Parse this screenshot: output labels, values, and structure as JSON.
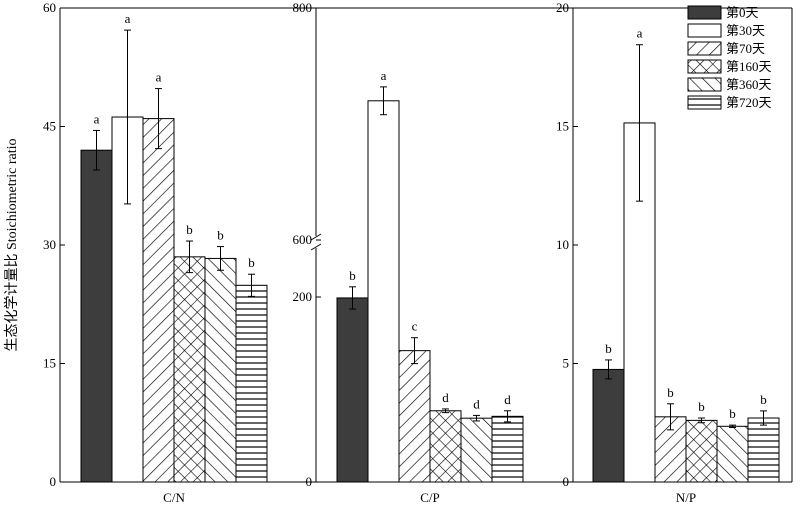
{
  "chart_data": {
    "type": "bar",
    "ylabel": "生态化学计量比 Stoichiometric ratio",
    "legend": {
      "placement": "top-right",
      "entries": [
        {
          "name": "第0天",
          "pattern": "solid-dark"
        },
        {
          "name": "第30天",
          "pattern": "white"
        },
        {
          "name": "第70天",
          "pattern": "diagonal-forward"
        },
        {
          "name": "第160天",
          "pattern": "crosshatch"
        },
        {
          "name": "第360天",
          "pattern": "diagonal-back"
        },
        {
          "name": "第720天",
          "pattern": "horizontal"
        }
      ]
    },
    "colors": {
      "dark_bar": "#3d3d3d",
      "line": "#000000"
    },
    "panels": [
      {
        "category": "C/N",
        "ylim": [
          0,
          60
        ],
        "ticks": [
          "0",
          "15",
          "30",
          "45",
          "60"
        ],
        "tick_values": [
          0,
          15,
          30,
          45,
          60
        ],
        "values": [
          42,
          46.2,
          46,
          28.5,
          28.3,
          24.9
        ],
        "errors": [
          2.5,
          11,
          3.8,
          2,
          1.5,
          1.4
        ],
        "letters": [
          "a",
          "a",
          "a",
          "b",
          "b",
          "b"
        ]
      },
      {
        "category": "C/P",
        "broken_axis": true,
        "ylim": [
          0,
          800
        ],
        "ticks": [
          "0",
          "200",
          "600",
          "800"
        ],
        "tick_values": [
          0,
          200,
          600,
          800
        ],
        "values": [
          199,
          720,
          142,
          77,
          69,
          71
        ],
        "errors": [
          12,
          12,
          14,
          2,
          3,
          6
        ],
        "letters": [
          "b",
          "a",
          "c",
          "d",
          "d",
          "d"
        ]
      },
      {
        "category": "N/P",
        "ylim": [
          0,
          20
        ],
        "ticks": [
          "0",
          "5",
          "10",
          "15",
          "20"
        ],
        "tick_values": [
          0,
          5,
          10,
          15,
          20
        ],
        "values": [
          4.75,
          15.15,
          2.75,
          2.6,
          2.35,
          2.7
        ],
        "errors": [
          0.4,
          3.3,
          0.55,
          0.1,
          0.05,
          0.3
        ],
        "letters": [
          "b",
          "a",
          "b",
          "b",
          "b",
          "b"
        ]
      }
    ]
  }
}
